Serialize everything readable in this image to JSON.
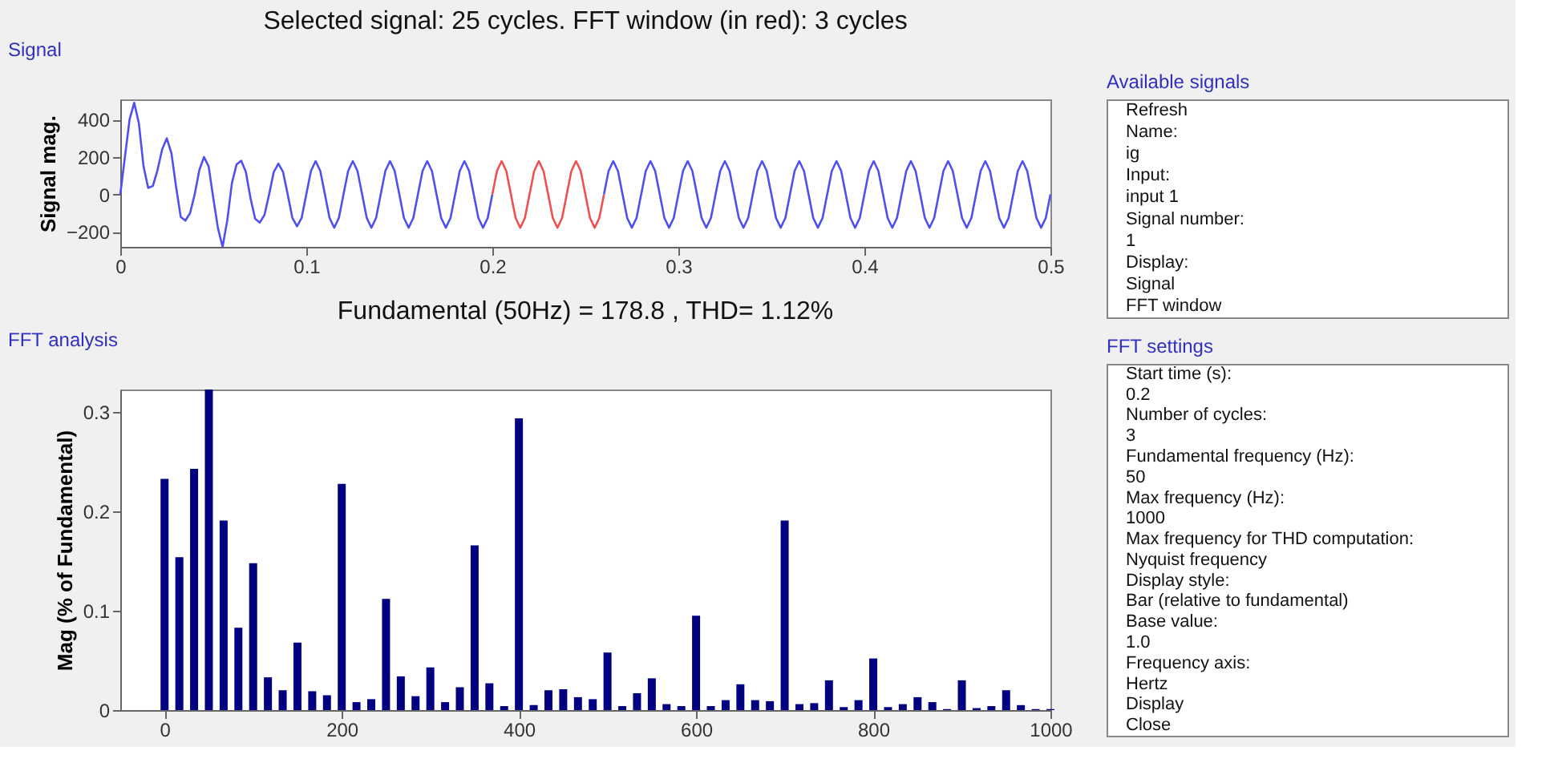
{
  "chart_data": [
    {
      "type": "line",
      "title": "Selected signal: 25 cycles. FFT window (in red): 3 cycles",
      "ylabel": "Signal mag.",
      "annotations": [
        "Signal"
      ],
      "xlim": [
        0,
        0.5
      ],
      "ylim": [
        -280,
        508
      ],
      "xticks": [
        0,
        0.1,
        0.2,
        0.3,
        0.4,
        0.5
      ],
      "yticks": [
        -200,
        0,
        200,
        400
      ],
      "grid": false,
      "series": [
        {
          "color": "#5050f0",
          "x": [
            0,
            0.0025,
            0.005,
            0.0075,
            0.01,
            0.0125,
            0.015,
            0.0175,
            0.02,
            0.0225,
            0.025,
            0.0275,
            0.03,
            0.0325,
            0.035,
            0.0375,
            0.04,
            0.0425,
            0.045,
            0.0475,
            0.05,
            0.0525,
            0.055,
            0.0575,
            0.06,
            0.0625,
            0.065,
            0.0675,
            0.07,
            0.0725,
            0.075,
            0.0775,
            0.08,
            0.0825,
            0.085,
            0.0875,
            0.09,
            0.0925,
            0.095,
            0.0975,
            0.1,
            0.1025,
            0.105,
            0.1075,
            0.11,
            0.1125,
            0.115,
            0.1175,
            0.12,
            0.1225,
            0.125,
            0.1275,
            0.13,
            0.1325,
            0.135,
            0.1375,
            0.14,
            0.1425,
            0.145,
            0.1475,
            0.15,
            0.1525,
            0.155,
            0.1575,
            0.16,
            0.1625,
            0.165,
            0.1675,
            0.17,
            0.1725,
            0.175,
            0.1775,
            0.18,
            0.1825,
            0.185,
            0.1875,
            0.19,
            0.1925,
            0.195,
            0.1975,
            0.2
          ],
          "values": [
            0,
            200,
            400,
            490,
            380,
            150,
            35,
            45,
            130,
            240,
            300,
            220,
            40,
            -120,
            -140,
            -100,
            0,
            130,
            200,
            150,
            -20,
            -180,
            -280,
            -140,
            60,
            160,
            180,
            120,
            -20,
            -130,
            -150,
            -110,
            0,
            120,
            165,
            120,
            0,
            -125,
            -170,
            -125,
            0,
            126,
            178,
            126,
            0,
            -126,
            -178,
            -126,
            0,
            126,
            178,
            126,
            0,
            -126,
            -178,
            -126,
            0,
            126,
            178,
            126,
            0,
            -126,
            -178,
            -126,
            0,
            126,
            178,
            126,
            0,
            -126,
            -178,
            -126,
            0,
            126,
            178,
            126,
            0,
            -126,
            -178,
            -126,
            0
          ]
        },
        {
          "color": "#f05050",
          "x": [
            0.2,
            0.2025,
            0.205,
            0.2075,
            0.21,
            0.2125,
            0.215,
            0.2175,
            0.22,
            0.2225,
            0.225,
            0.2275,
            0.23,
            0.2325,
            0.235,
            0.2375,
            0.24,
            0.2425,
            0.245,
            0.2475,
            0.25,
            0.2525,
            0.255,
            0.2575,
            0.26
          ],
          "values": [
            0,
            126,
            178,
            126,
            0,
            -126,
            -178,
            -126,
            0,
            126,
            178,
            126,
            0,
            -126,
            -178,
            -126,
            0,
            126,
            178,
            126,
            0,
            -126,
            -178,
            -126,
            0
          ]
        },
        {
          "color": "#5050f0",
          "x": [
            0.26,
            0.2625,
            0.265,
            0.2675,
            0.27,
            0.2725,
            0.275,
            0.2775,
            0.28,
            0.2825,
            0.285,
            0.2875,
            0.29,
            0.2925,
            0.295,
            0.2975,
            0.3,
            0.3025,
            0.305,
            0.3075,
            0.31,
            0.3125,
            0.315,
            0.3175,
            0.32,
            0.3225,
            0.325,
            0.3275,
            0.33,
            0.3325,
            0.335,
            0.3375,
            0.34,
            0.3425,
            0.345,
            0.3475,
            0.35,
            0.3525,
            0.355,
            0.3575,
            0.36,
            0.3625,
            0.365,
            0.3675,
            0.37,
            0.3725,
            0.375,
            0.3775,
            0.38,
            0.3825,
            0.385,
            0.3875,
            0.39,
            0.3925,
            0.395,
            0.3975,
            0.4,
            0.4025,
            0.405,
            0.4075,
            0.41,
            0.4125,
            0.415,
            0.4175,
            0.42,
            0.4225,
            0.425,
            0.4275,
            0.43,
            0.4325,
            0.435,
            0.4375,
            0.44,
            0.4425,
            0.445,
            0.4475,
            0.45,
            0.4525,
            0.455,
            0.4575,
            0.46,
            0.4625,
            0.465,
            0.4675,
            0.47,
            0.4725,
            0.475,
            0.4775,
            0.48,
            0.4825,
            0.485,
            0.4875,
            0.49,
            0.4925,
            0.495,
            0.4975,
            0.5
          ],
          "values": [
            0,
            126,
            178,
            126,
            0,
            -126,
            -178,
            -126,
            0,
            126,
            178,
            126,
            0,
            -126,
            -178,
            -126,
            0,
            126,
            178,
            126,
            0,
            -126,
            -178,
            -126,
            0,
            126,
            178,
            126,
            0,
            -126,
            -178,
            -126,
            0,
            126,
            178,
            126,
            0,
            -126,
            -178,
            -126,
            0,
            126,
            178,
            126,
            0,
            -126,
            -178,
            -126,
            0,
            126,
            178,
            126,
            0,
            -126,
            -178,
            -126,
            0,
            126,
            178,
            126,
            0,
            -126,
            -178,
            -126,
            0,
            126,
            178,
            126,
            0,
            -126,
            -178,
            -126,
            0,
            126,
            178,
            126,
            0,
            -126,
            -178,
            -126,
            0,
            126,
            178,
            126,
            0,
            -126,
            -178,
            -126,
            0,
            126,
            178,
            126,
            0,
            -126,
            -178,
            -126,
            0
          ]
        }
      ]
    },
    {
      "type": "bar",
      "title": "Fundamental (50Hz) = 178.8 , THD= 1.12%",
      "ylabel": "Mag (% of Fundamental)",
      "annotations": [
        "FFT analysis"
      ],
      "xlim": [
        -50,
        1000
      ],
      "ylim": [
        0,
        0.323
      ],
      "xticks": [
        0,
        200,
        400,
        600,
        800,
        1000
      ],
      "yticks": [
        0,
        0.1,
        0.2,
        0.3
      ],
      "grid": false,
      "color": "#000080",
      "x": [
        0,
        16.67,
        33.33,
        50,
        66.67,
        83.33,
        100,
        116.67,
        133.33,
        150,
        166.67,
        183.33,
        200,
        216.67,
        233.33,
        250,
        266.67,
        283.33,
        300,
        316.67,
        333.33,
        350,
        366.67,
        383.33,
        400,
        416.67,
        433.33,
        450,
        466.67,
        483.33,
        500,
        516.67,
        533.33,
        550,
        566.67,
        583.33,
        600,
        616.67,
        633.33,
        650,
        666.67,
        683.33,
        700,
        716.67,
        733.33,
        750,
        766.67,
        783.33,
        800,
        816.67,
        833.33,
        850,
        866.67,
        883.33,
        900,
        916.67,
        933.33,
        950,
        966.67,
        983.33,
        1000
      ],
      "values": [
        0.233,
        0.154,
        0.243,
        0.323,
        0.191,
        0.083,
        0.148,
        0.033,
        0.02,
        0.068,
        0.019,
        0.015,
        0.228,
        0.008,
        0.011,
        0.112,
        0.034,
        0.014,
        0.043,
        0.008,
        0.023,
        0.166,
        0.027,
        0.004,
        0.294,
        0.005,
        0.02,
        0.021,
        0.013,
        0.011,
        0.058,
        0.004,
        0.017,
        0.032,
        0.006,
        0.004,
        0.095,
        0.004,
        0.01,
        0.026,
        0.01,
        0.009,
        0.191,
        0.006,
        0.007,
        0.03,
        0.003,
        0.01,
        0.052,
        0.003,
        0.006,
        0.013,
        0.008,
        0.001,
        0.03,
        0.002,
        0.004,
        0.02,
        0.005,
        0.001,
        0.001
      ]
    },
    {
      "type": "other",
      "title": "Available signals",
      "annotations": [
        "Refresh",
        "Name:",
        "ig",
        "Input:",
        "input 1",
        "Signal number:",
        "1",
        "Display:",
        "Signal",
        "FFT window"
      ]
    },
    {
      "type": "other",
      "title": "FFT settings",
      "annotations": [
        "Start time (s):",
        "0.2",
        "Number of cycles:",
        "3",
        "Fundamental frequency (Hz):",
        "50",
        "Max frequency (Hz):",
        "1000",
        "Max frequency for THD computation:",
        "Nyquist frequency",
        "Display style:",
        "Bar (relative to fundamental)",
        "Base value:",
        "1.0",
        "Frequency axis:",
        "Hertz",
        "Display",
        "Close"
      ]
    }
  ]
}
